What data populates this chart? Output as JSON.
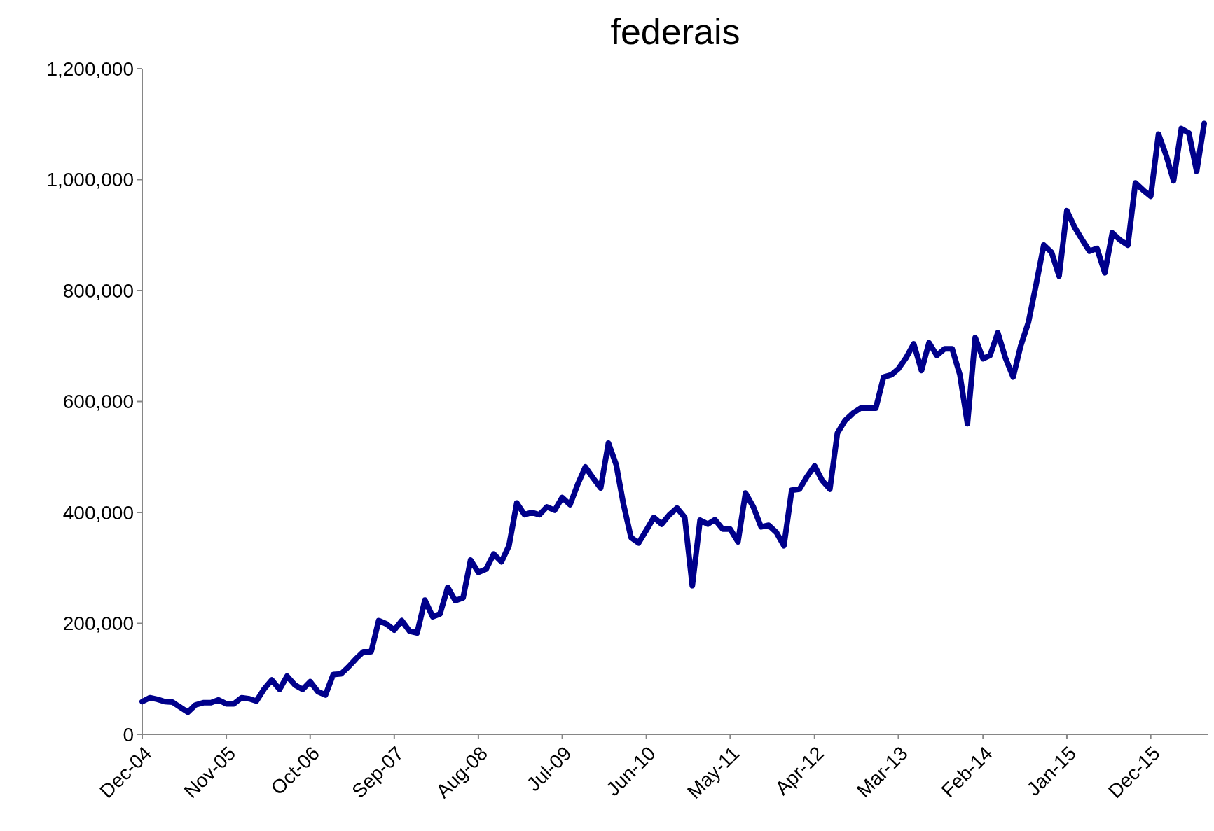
{
  "chart_data": {
    "type": "line",
    "title": "federais",
    "x": [
      "2004-12",
      "2005-01",
      "2005-02",
      "2005-03",
      "2005-04",
      "2005-05",
      "2005-06",
      "2005-07",
      "2005-08",
      "2005-09",
      "2005-10",
      "2005-11",
      "2005-12",
      "2006-01",
      "2006-02",
      "2006-03",
      "2006-04",
      "2006-05",
      "2006-06",
      "2006-07",
      "2006-08",
      "2006-09",
      "2006-10",
      "2006-11",
      "2006-12",
      "2007-01",
      "2007-02",
      "2007-03",
      "2007-04",
      "2007-05",
      "2007-06",
      "2007-07",
      "2007-08",
      "2007-09",
      "2007-10",
      "2007-11",
      "2007-12",
      "2008-01",
      "2008-02",
      "2008-03",
      "2008-04",
      "2008-05",
      "2008-06",
      "2008-07",
      "2008-08",
      "2008-09",
      "2008-10",
      "2008-11",
      "2008-12",
      "2009-01",
      "2009-02",
      "2009-03",
      "2009-04",
      "2009-05",
      "2009-06",
      "2009-07",
      "2009-08",
      "2009-09",
      "2009-10",
      "2009-11",
      "2009-12",
      "2010-01",
      "2010-02",
      "2010-03",
      "2010-04",
      "2010-05",
      "2010-06",
      "2010-07",
      "2010-08",
      "2010-09",
      "2010-10",
      "2010-11",
      "2010-12",
      "2011-01",
      "2011-02",
      "2011-03",
      "2011-04",
      "2011-05",
      "2011-06",
      "2011-07",
      "2011-08",
      "2011-09",
      "2011-10",
      "2011-11",
      "2011-12",
      "2012-01",
      "2012-02",
      "2012-03",
      "2012-04",
      "2012-05",
      "2012-06",
      "2012-07",
      "2012-08",
      "2012-09",
      "2012-10",
      "2012-11",
      "2012-12",
      "2013-01",
      "2013-02",
      "2013-03",
      "2013-04",
      "2013-05",
      "2013-06",
      "2013-07",
      "2013-08",
      "2013-09",
      "2013-10",
      "2013-11",
      "2013-12",
      "2014-01",
      "2014-02",
      "2014-03",
      "2014-04",
      "2014-05",
      "2014-06",
      "2014-07",
      "2014-08",
      "2014-09",
      "2014-10",
      "2014-11",
      "2014-12",
      "2015-01",
      "2015-02",
      "2015-03",
      "2015-04",
      "2015-05",
      "2015-06",
      "2015-07",
      "2015-08",
      "2015-09",
      "2015-10",
      "2015-11",
      "2015-12",
      "2016-01",
      "2016-02",
      "2016-03",
      "2016-04",
      "2016-05",
      "2016-06",
      "2016-07"
    ],
    "series": [
      {
        "color": "#00008b",
        "values": [
          59000,
          66000,
          63000,
          59000,
          58000,
          49000,
          40000,
          53000,
          57000,
          57000,
          62000,
          55000,
          55000,
          66000,
          64000,
          60000,
          82000,
          98000,
          81000,
          105000,
          89000,
          81000,
          95000,
          77000,
          71000,
          108000,
          109000,
          121000,
          136000,
          149000,
          149000,
          205000,
          199000,
          188000,
          205000,
          186000,
          183000,
          242000,
          212000,
          217000,
          265000,
          241000,
          246000,
          314000,
          292000,
          298000,
          325000,
          311000,
          340000,
          417000,
          396000,
          400000,
          396000,
          410000,
          404000,
          427000,
          414000,
          451000,
          482000,
          462000,
          444000,
          525000,
          486000,
          417000,
          355000,
          345000,
          368000,
          391000,
          379000,
          396000,
          408000,
          391000,
          268000,
          386000,
          379000,
          387000,
          370000,
          370000,
          347000,
          435000,
          410000,
          374000,
          377000,
          364000,
          340000,
          440000,
          442000,
          464000,
          484000,
          458000,
          442000,
          543000,
          566000,
          579000,
          588000,
          588000,
          588000,
          644000,
          648000,
          659000,
          679000,
          704000,
          656000,
          706000,
          683000,
          695000,
          695000,
          648000,
          560000,
          715000,
          677000,
          683000,
          724000,
          679000,
          644000,
          700000,
          743000,
          812000,
          882000,
          869000,
          826000,
          944000,
          914000,
          893000,
          871000,
          876000,
          832000,
          904000,
          891000,
          882000,
          994000,
          981000,
          970000,
          1082000,
          1043000,
          998000,
          1092000,
          1084000,
          1015000,
          1101000
        ]
      }
    ],
    "xlim": [
      "2004-12",
      "2016-07"
    ],
    "xticks": [
      {
        "value": "2004-12",
        "label": "Dec-04"
      },
      {
        "value": "2005-11",
        "label": "Nov-05"
      },
      {
        "value": "2006-10",
        "label": "Oct-06"
      },
      {
        "value": "2007-09",
        "label": "Sep-07"
      },
      {
        "value": "2008-08",
        "label": "Aug-08"
      },
      {
        "value": "2009-07",
        "label": "Jul-09"
      },
      {
        "value": "2010-06",
        "label": "Jun-10"
      },
      {
        "value": "2011-05",
        "label": "May-11"
      },
      {
        "value": "2012-04",
        "label": "Apr-12"
      },
      {
        "value": "2013-03",
        "label": "Mar-13"
      },
      {
        "value": "2014-02",
        "label": "Feb-14"
      },
      {
        "value": "2015-01",
        "label": "Jan-15"
      },
      {
        "value": "2015-12",
        "label": "Dec-15"
      }
    ],
    "ylim": [
      0,
      1200000
    ],
    "yticks": [
      {
        "value": 0,
        "label": "0"
      },
      {
        "value": 200000,
        "label": "200,000"
      },
      {
        "value": 400000,
        "label": "400,000"
      },
      {
        "value": 600000,
        "label": "600,000"
      },
      {
        "value": 800000,
        "label": "800,000"
      },
      {
        "value": 1000000,
        "label": "1,000,000"
      },
      {
        "value": 1200000,
        "label": "1,200,000"
      }
    ],
    "grid": false,
    "marker": "none",
    "line_style": "solid"
  }
}
